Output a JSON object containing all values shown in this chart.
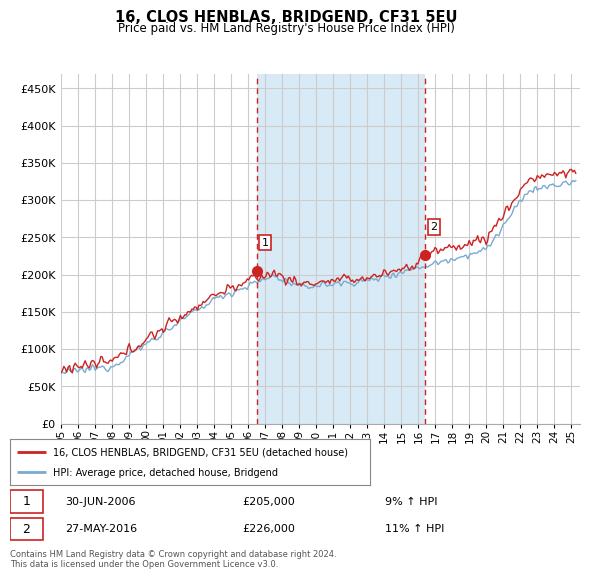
{
  "title": "16, CLOS HENBLAS, BRIDGEND, CF31 5EU",
  "subtitle": "Price paid vs. HM Land Registry's House Price Index (HPI)",
  "yticks": [
    0,
    50000,
    100000,
    150000,
    200000,
    250000,
    300000,
    350000,
    400000,
    450000
  ],
  "ylim": [
    0,
    470000
  ],
  "xlim_start": 1995.0,
  "xlim_end": 2025.5,
  "sale1_date": 2006.5,
  "sale1_price": 205000,
  "sale1_label": "1",
  "sale2_date": 2016.42,
  "sale2_price": 226000,
  "sale2_label": "2",
  "hpi_color": "#7aabcf",
  "price_color": "#cc2222",
  "vline_color": "#cc2222",
  "shade_color": "#d8eaf5",
  "grid_color": "#cccccc",
  "background_color": "#ffffff",
  "legend_text_1": "16, CLOS HENBLAS, BRIDGEND, CF31 5EU (detached house)",
  "legend_text_2": "HPI: Average price, detached house, Bridgend",
  "annotation1": [
    "1",
    "30-JUN-2006",
    "£205,000",
    "9% ↑ HPI"
  ],
  "annotation2": [
    "2",
    "27-MAY-2016",
    "£226,000",
    "11% ↑ HPI"
  ],
  "footer": "Contains HM Land Registry data © Crown copyright and database right 2024.\nThis data is licensed under the Open Government Licence v3.0."
}
